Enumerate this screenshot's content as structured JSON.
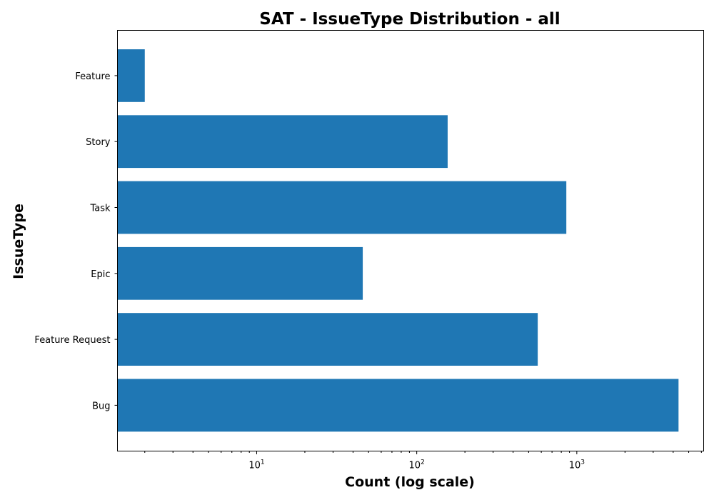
{
  "chart_data": {
    "type": "bar",
    "orientation": "horizontal",
    "title": "SAT - IssueType Distribution - all",
    "xlabel": "Count (log scale)",
    "ylabel": "IssueType",
    "x_scale": "log",
    "xlim": [
      1.35,
      6200
    ],
    "x_major_ticks": [
      {
        "value": 10,
        "base": "10",
        "exp": "1"
      },
      {
        "value": 100,
        "base": "10",
        "exp": "2"
      },
      {
        "value": 1000,
        "base": "10",
        "exp": "3"
      }
    ],
    "categories": [
      "Feature",
      "Story",
      "Task",
      "Epic",
      "Feature Request",
      "Bug"
    ],
    "values": [
      2,
      156,
      860,
      46,
      570,
      4320
    ],
    "bar_color": "#1f77b4",
    "grid": false,
    "legend": "none"
  }
}
